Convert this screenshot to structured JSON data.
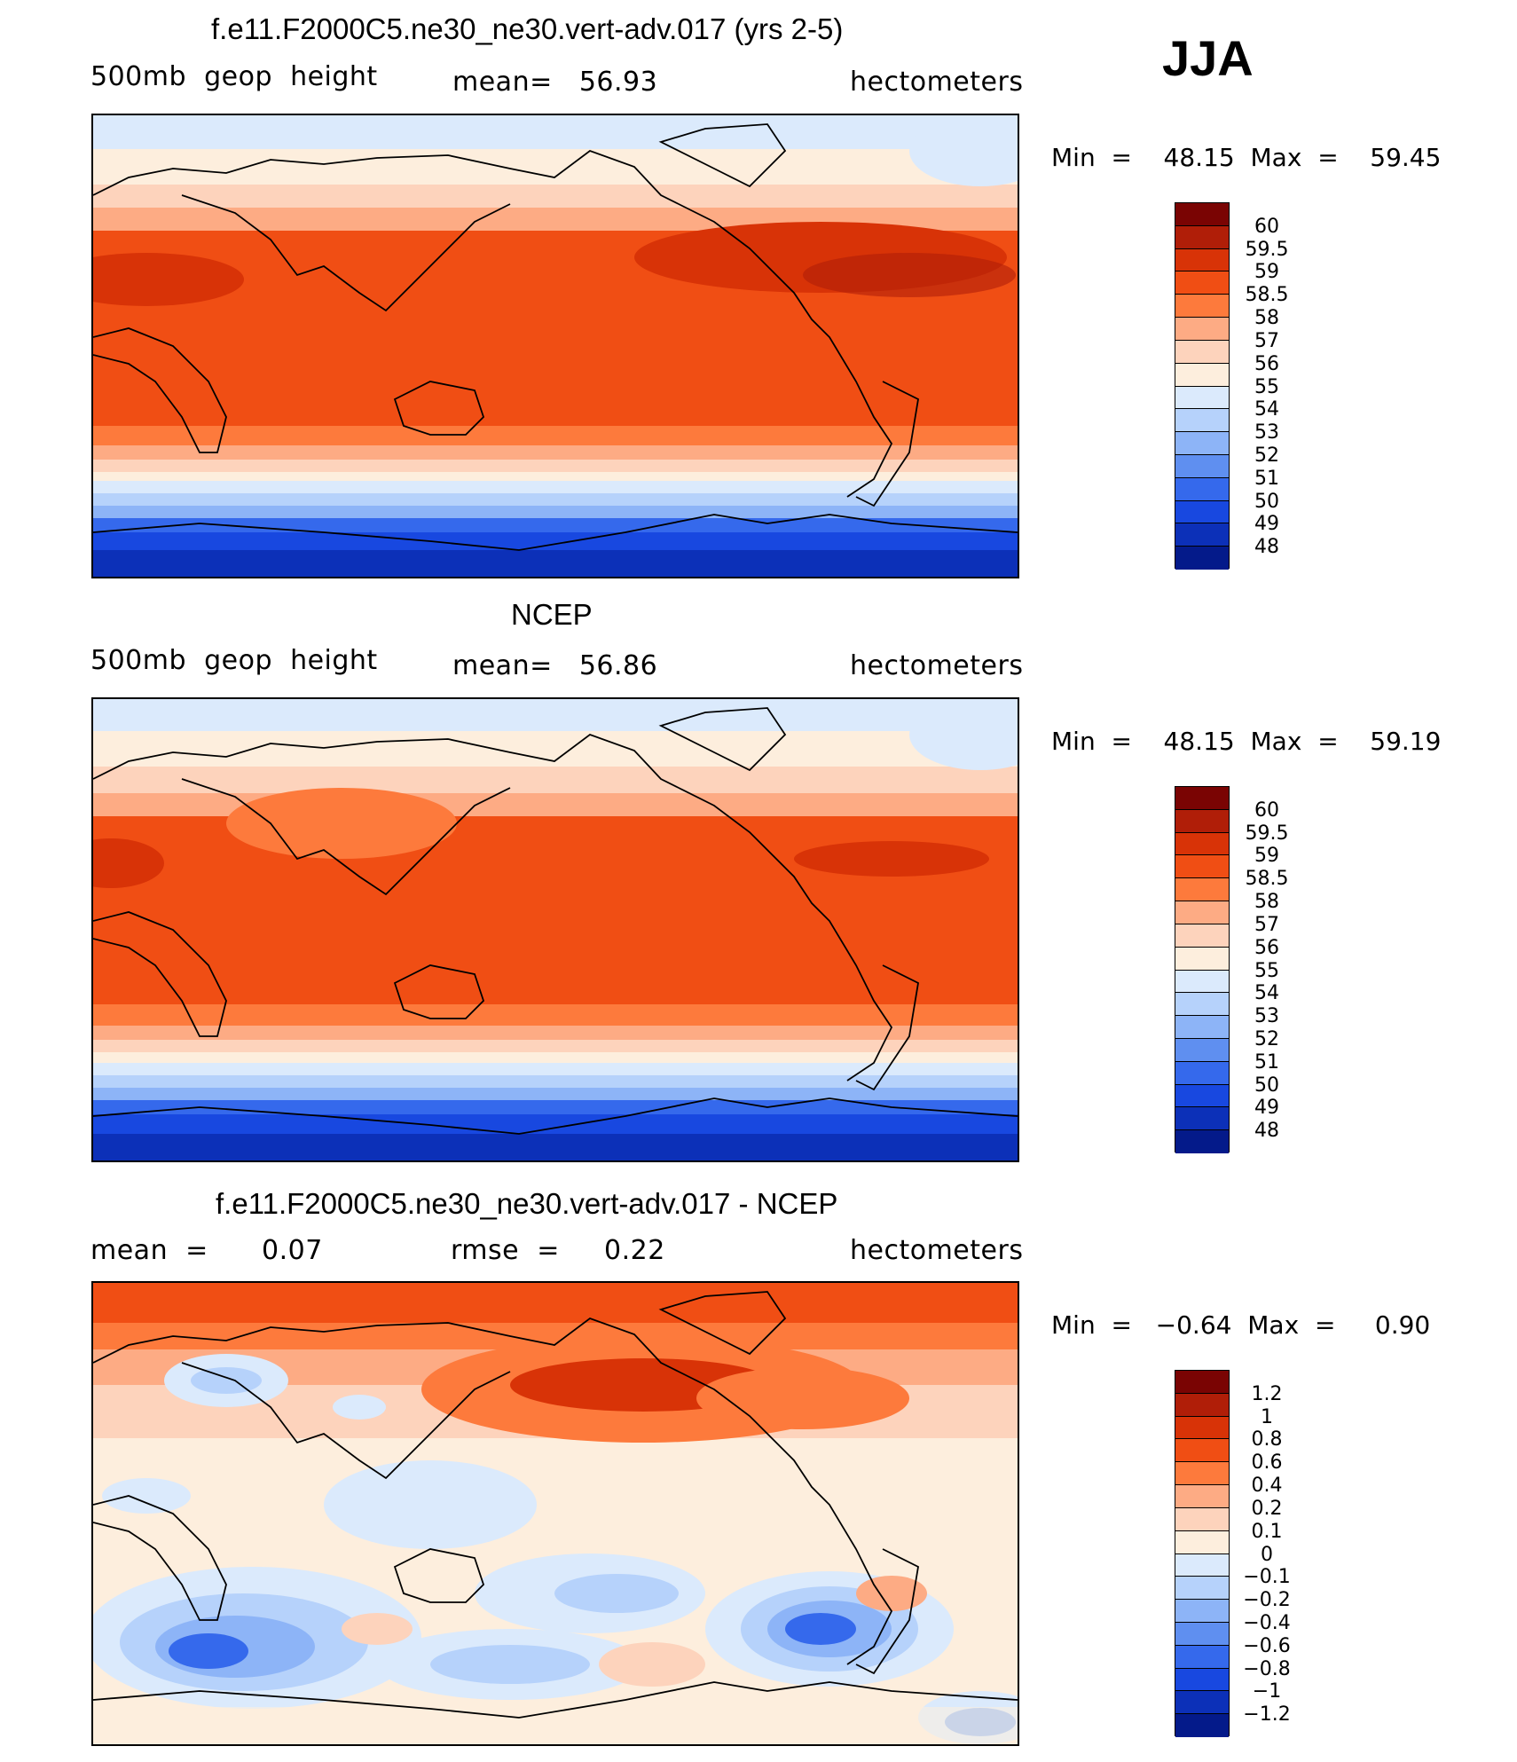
{
  "season": "JJA",
  "panels": [
    {
      "id": "model",
      "title": "f.e11.F2000C5.ne30_ne30.vert-adv.017 (yrs 2-5)",
      "left_label": "500mb  geop  height",
      "center_label": "mean=   56.93",
      "right_label": "hectometers",
      "minmax": "Min  =    48.15  Max  =    59.45",
      "colorbar": {
        "labels": [
          "60",
          "59.5",
          "59",
          "58.5",
          "58",
          "57",
          "56",
          "55",
          "54",
          "53",
          "52",
          "51",
          "50",
          "49",
          "48"
        ],
        "colors": [
          "#7a0403",
          "#b01e08",
          "#d83307",
          "#f04e14",
          "#fd7a3c",
          "#fdab84",
          "#fdd3bc",
          "#fdeedd",
          "#dbeafc",
          "#b6d2fb",
          "#8db4f7",
          "#5f8ff0",
          "#3569ec",
          "#1848e0",
          "#0c30b8",
          "#041a8a"
        ]
      }
    },
    {
      "id": "obs",
      "title": "NCEP",
      "left_label": "500mb  geop  height",
      "center_label": "mean=   56.86",
      "right_label": "hectometers",
      "minmax": "Min  =    48.15  Max  =    59.19",
      "colorbar": {
        "labels": [
          "60",
          "59.5",
          "59",
          "58.5",
          "58",
          "57",
          "56",
          "55",
          "54",
          "53",
          "52",
          "51",
          "50",
          "49",
          "48"
        ],
        "colors": [
          "#7a0403",
          "#b01e08",
          "#d83307",
          "#f04e14",
          "#fd7a3c",
          "#fdab84",
          "#fdd3bc",
          "#fdeedd",
          "#dbeafc",
          "#b6d2fb",
          "#8db4f7",
          "#5f8ff0",
          "#3569ec",
          "#1848e0",
          "#0c30b8",
          "#041a8a"
        ]
      }
    },
    {
      "id": "diff",
      "title": "f.e11.F2000C5.ne30_ne30.vert-adv.017 - NCEP",
      "left_label": "mean  =      0.07",
      "center_label": "rmse  =     0.22",
      "right_label": "hectometers",
      "minmax": "Min  =   −0.64  Max  =     0.90",
      "colorbar": {
        "labels": [
          "1.2",
          "1",
          "0.8",
          "0.6",
          "0.4",
          "0.2",
          "0.1",
          "0",
          "−0.1",
          "−0.2",
          "−0.4",
          "−0.6",
          "−0.8",
          "−1",
          "−1.2"
        ],
        "colors": [
          "#7a0403",
          "#b01e08",
          "#d83307",
          "#f04e14",
          "#fd7a3c",
          "#fdab84",
          "#fdd3bc",
          "#fdeedd",
          "#dbeafc",
          "#b6d2fb",
          "#8db4f7",
          "#5f8ff0",
          "#3569ec",
          "#1848e0",
          "#0c30b8",
          "#041a8a"
        ]
      }
    }
  ]
}
